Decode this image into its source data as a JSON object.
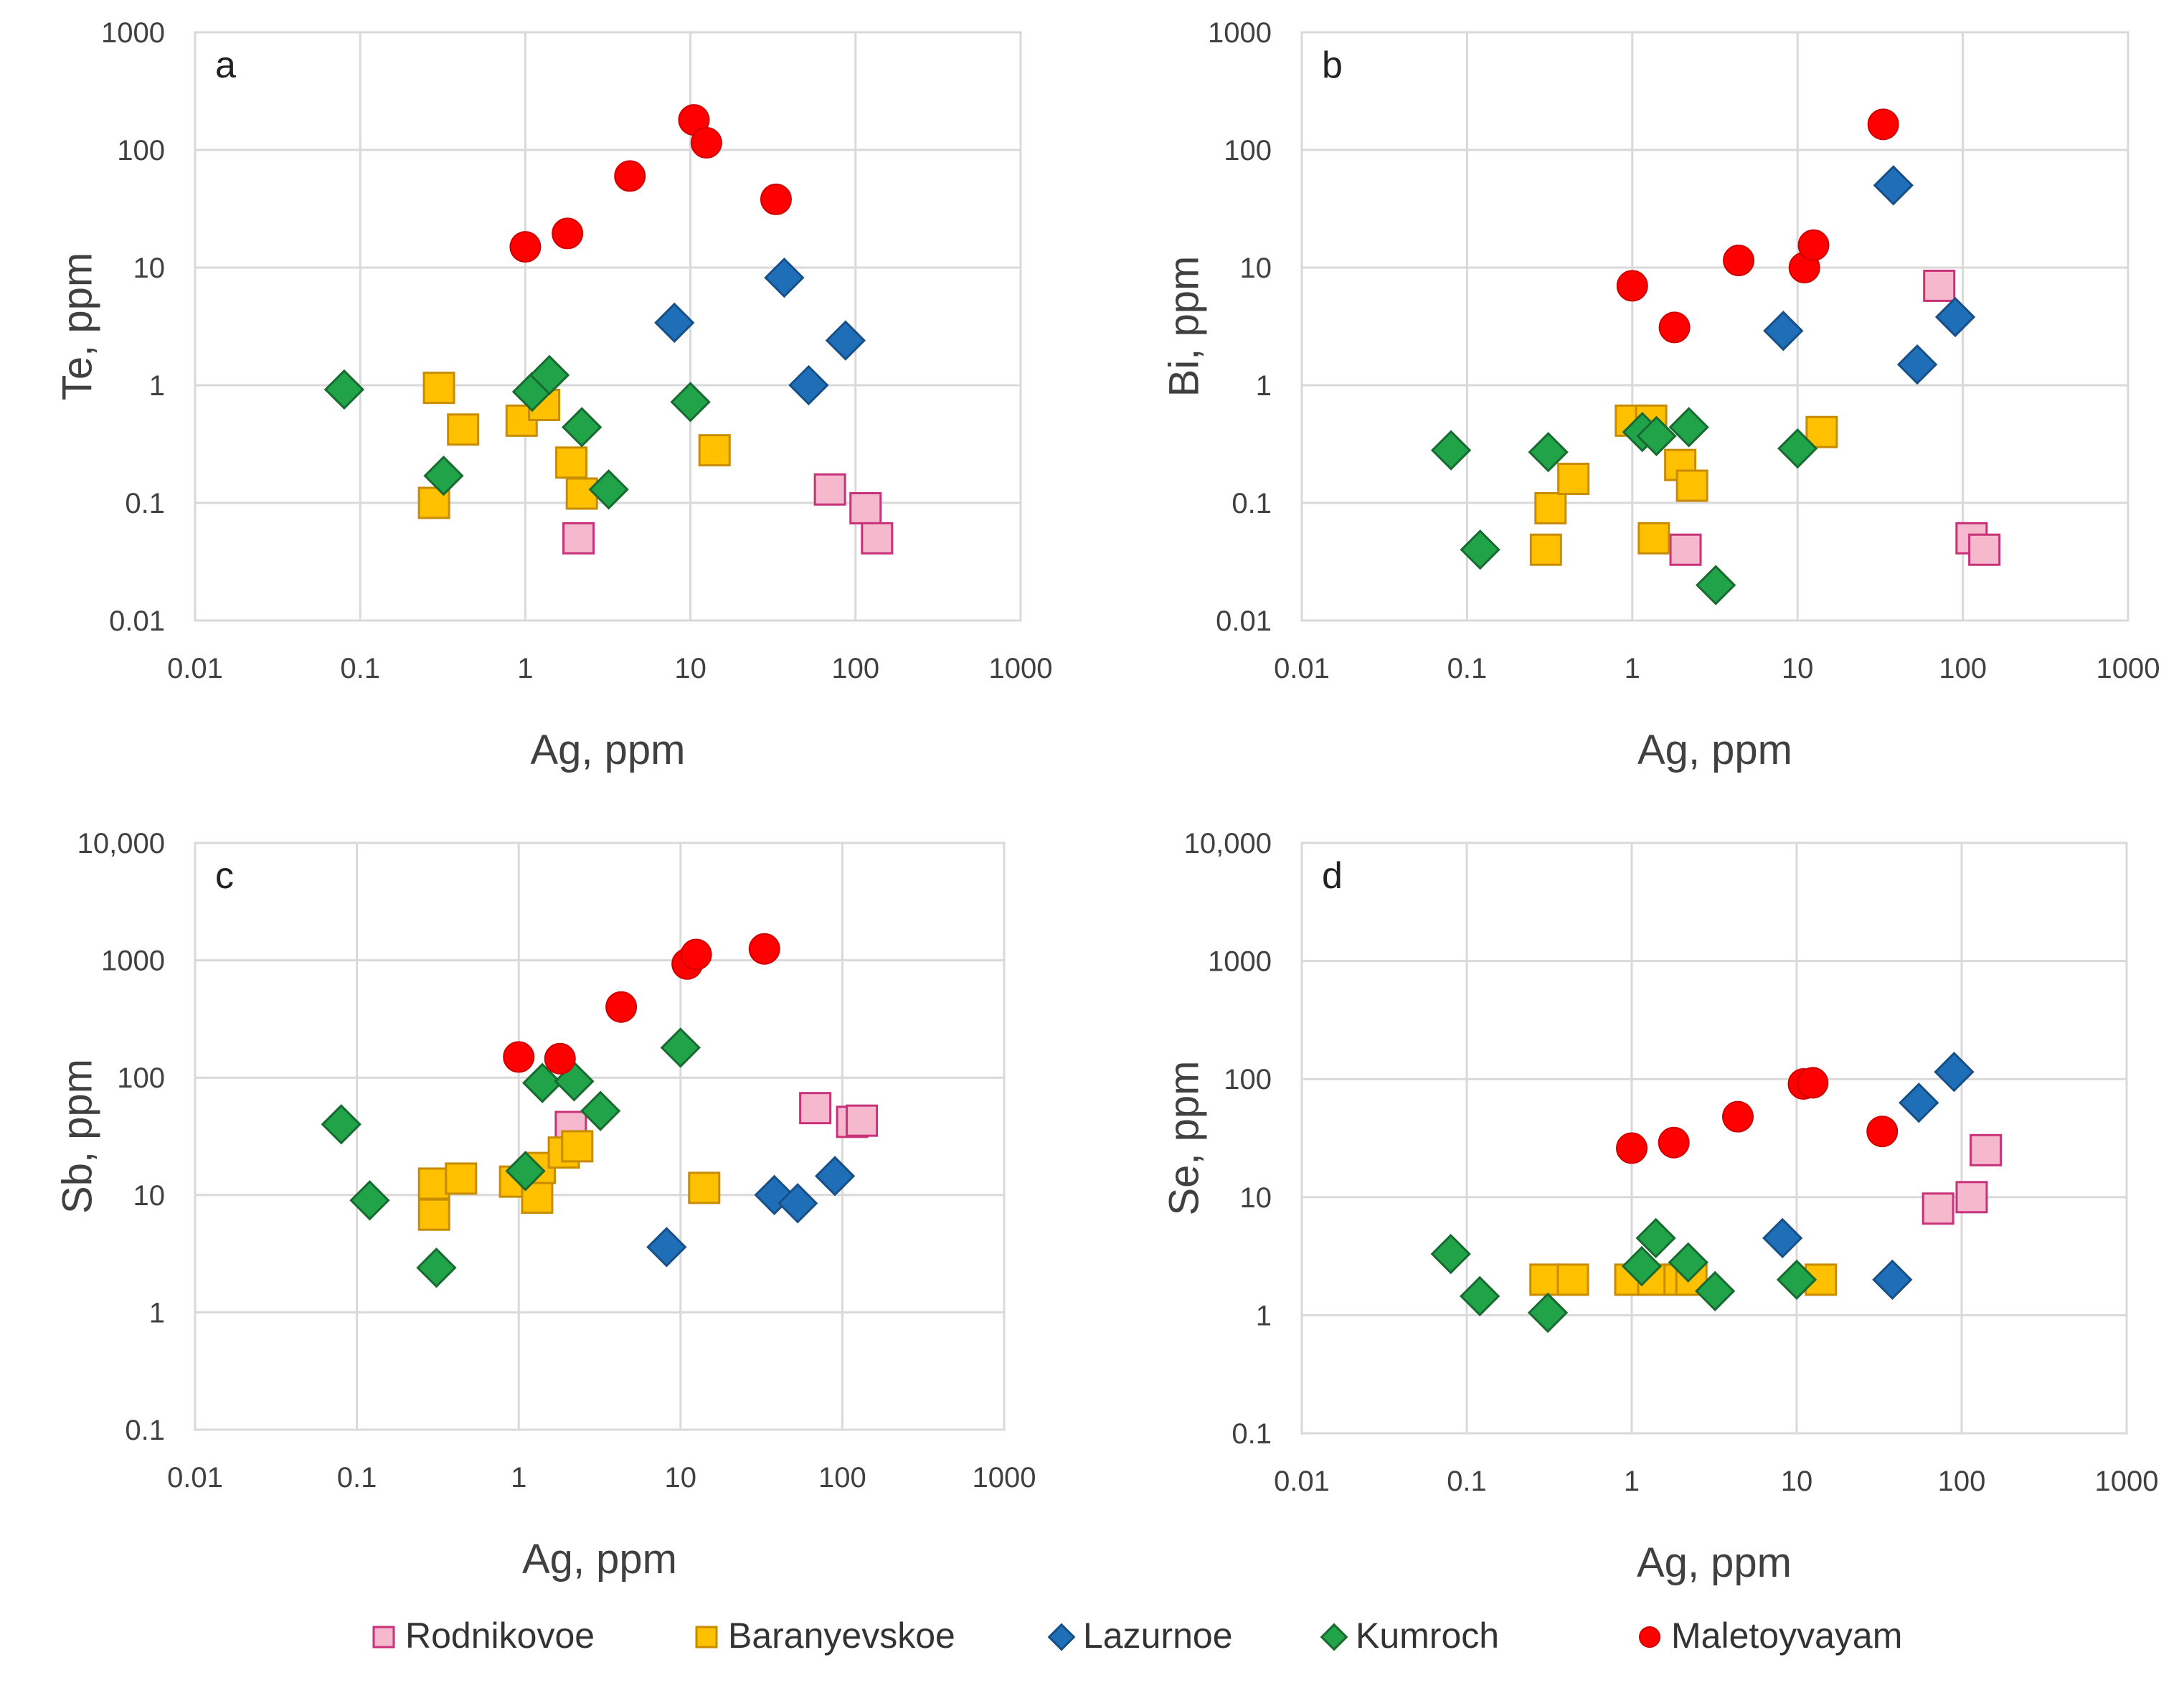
{
  "colors": {
    "Rodnikovoe": {
      "fill": "#f5b8cc",
      "stroke": "#c83278"
    },
    "Baranyevskoe": {
      "fill": "#ffc000",
      "stroke": "#c88c00"
    },
    "Lazurnoe": {
      "fill": "#1f6fb8",
      "stroke": "#174f86"
    },
    "Kumroch": {
      "fill": "#21a349",
      "stroke": "#186b30"
    },
    "Maletoyvayam": {
      "fill": "#ff0000",
      "stroke": "#d00000"
    }
  },
  "legend": [
    {
      "name": "Rodnikovoe",
      "marker": "square-pink"
    },
    {
      "name": "Baranyevskoe",
      "marker": "square-orange"
    },
    {
      "name": "Lazurnoe",
      "marker": "diamond-blue"
    },
    {
      "name": "Kumroch",
      "marker": "diamond-green"
    },
    {
      "name": "Maletoyvayam",
      "marker": "circle-red"
    }
  ],
  "chart_data": [
    {
      "panel": "a",
      "type": "scatter",
      "xlabel": "Ag, ppm",
      "ylabel": "Te, ppm",
      "xscale": "log",
      "yscale": "log",
      "xlim": [
        0.01,
        1000
      ],
      "ylim": [
        0.01,
        1000
      ],
      "xticks": [
        "0.01",
        "0.1",
        "1",
        "10",
        "100",
        "1000"
      ],
      "yticks": [
        "0.01",
        "0.1",
        "1",
        "10",
        "100",
        "1000"
      ],
      "series": [
        {
          "name": "Rodnikovoe",
          "marker": "square",
          "points": [
            [
              2.1,
              0.05
            ],
            [
              70,
              0.13
            ],
            [
              115,
              0.09
            ],
            [
              135,
              0.05
            ]
          ]
        },
        {
          "name": "Baranyevskoe",
          "marker": "square",
          "points": [
            [
              0.3,
              0.95
            ],
            [
              0.28,
              0.1
            ],
            [
              0.42,
              0.42
            ],
            [
              0.95,
              0.5
            ],
            [
              1.3,
              0.68
            ],
            [
              1.9,
              0.22
            ],
            [
              2.2,
              0.12
            ],
            [
              14,
              0.28
            ]
          ]
        },
        {
          "name": "Lazurnoe",
          "marker": "diamond",
          "points": [
            [
              8,
              3.4
            ],
            [
              37,
              8.2
            ],
            [
              52,
              1.0
            ],
            [
              87,
              2.4
            ]
          ]
        },
        {
          "name": "Kumroch",
          "marker": "diamond",
          "points": [
            [
              0.08,
              0.92
            ],
            [
              0.32,
              0.17
            ],
            [
              1.1,
              0.88
            ],
            [
              1.4,
              1.22
            ],
            [
              2.2,
              0.44
            ],
            [
              3.2,
              0.13
            ],
            [
              10,
              0.72
            ]
          ]
        },
        {
          "name": "Maletoyvayam",
          "marker": "circle",
          "points": [
            [
              1.0,
              15
            ],
            [
              1.8,
              19.5
            ],
            [
              4.3,
              60
            ],
            [
              10.5,
              180
            ],
            [
              12.5,
              115
            ],
            [
              33,
              38
            ]
          ]
        }
      ]
    },
    {
      "panel": "b",
      "type": "scatter",
      "xlabel": "Ag, ppm",
      "ylabel": "Bi, ppm",
      "xscale": "log",
      "yscale": "log",
      "xlim": [
        0.01,
        1000
      ],
      "ylim": [
        0.01,
        1000
      ],
      "xticks": [
        "0.01",
        "0.1",
        "1",
        "10",
        "100",
        "1000"
      ],
      "yticks": [
        "0.01",
        "0.1",
        "1",
        "10",
        "100",
        "1000"
      ],
      "series": [
        {
          "name": "Rodnikovoe",
          "marker": "square",
          "points": [
            [
              2.1,
              0.04
            ],
            [
              72,
              7
            ],
            [
              113,
              0.05
            ],
            [
              135,
              0.04
            ]
          ]
        },
        {
          "name": "Baranyevskoe",
          "marker": "square",
          "points": [
            [
              0.3,
              0.04
            ],
            [
              0.32,
              0.09
            ],
            [
              0.44,
              0.16
            ],
            [
              0.98,
              0.5
            ],
            [
              1.3,
              0.5
            ],
            [
              1.35,
              0.05
            ],
            [
              1.95,
              0.21
            ],
            [
              2.3,
              0.14
            ],
            [
              14,
              0.4
            ]
          ]
        },
        {
          "name": "Lazurnoe",
          "marker": "diamond",
          "points": [
            [
              8.2,
              2.9
            ],
            [
              38,
              50
            ],
            [
              53,
              1.5
            ],
            [
              90,
              3.8
            ]
          ]
        },
        {
          "name": "Kumroch",
          "marker": "diamond",
          "points": [
            [
              0.08,
              0.28
            ],
            [
              0.12,
              0.04
            ],
            [
              0.31,
              0.27
            ],
            [
              1.15,
              0.4
            ],
            [
              1.4,
              0.37
            ],
            [
              2.2,
              0.44
            ],
            [
              3.2,
              0.02
            ],
            [
              10,
              0.29
            ]
          ]
        },
        {
          "name": "Maletoyvayam",
          "marker": "circle",
          "points": [
            [
              1.0,
              7
            ],
            [
              1.8,
              3.1
            ],
            [
              4.4,
              11.5
            ],
            [
              11,
              10
            ],
            [
              12.5,
              15.5
            ],
            [
              33,
              165
            ]
          ]
        }
      ]
    },
    {
      "panel": "c",
      "type": "scatter",
      "xlabel": "Ag, ppm",
      "ylabel": "Sb, ppm",
      "xscale": "log",
      "yscale": "log",
      "xlim": [
        0.01,
        1000
      ],
      "ylim": [
        0.1,
        10000
      ],
      "xticks": [
        "0.01",
        "0.1",
        "1",
        "10",
        "100",
        "1000"
      ],
      "yticks": [
        "0.1",
        "1",
        "10",
        "100",
        "1000",
        "10,000"
      ],
      "series": [
        {
          "name": "Rodnikovoe",
          "marker": "square",
          "points": [
            [
              2.1,
              38
            ],
            [
              68,
              55
            ],
            [
              115,
              42
            ],
            [
              132,
              43
            ]
          ]
        },
        {
          "name": "Baranyevskoe",
          "marker": "square",
          "points": [
            [
              0.3,
              12.5
            ],
            [
              0.3,
              6.8
            ],
            [
              0.44,
              13.8
            ],
            [
              0.95,
              13
            ],
            [
              1.3,
              9.5
            ],
            [
              1.35,
              17
            ],
            [
              1.9,
              23
            ],
            [
              2.3,
              26
            ],
            [
              14,
              11.5
            ]
          ]
        },
        {
          "name": "Lazurnoe",
          "marker": "diamond",
          "points": [
            [
              8.2,
              3.6
            ],
            [
              38,
              10
            ],
            [
              53,
              8.5
            ],
            [
              90,
              14.5
            ]
          ]
        },
        {
          "name": "Kumroch",
          "marker": "diamond",
          "points": [
            [
              0.08,
              40
            ],
            [
              0.12,
              9
            ],
            [
              0.31,
              2.4
            ],
            [
              1.1,
              16
            ],
            [
              1.4,
              90
            ],
            [
              2.2,
              93
            ],
            [
              3.2,
              52
            ],
            [
              10,
              180
            ]
          ]
        },
        {
          "name": "Maletoyvayam",
          "marker": "circle",
          "points": [
            [
              1.0,
              150
            ],
            [
              1.8,
              145
            ],
            [
              4.3,
              400
            ],
            [
              11,
              930
            ],
            [
              12.5,
              1120
            ],
            [
              33,
              1250
            ]
          ]
        }
      ]
    },
    {
      "panel": "d",
      "type": "scatter",
      "xlabel": "Ag, ppm",
      "ylabel": "Se, ppm",
      "xscale": "log",
      "yscale": "log",
      "xlim": [
        0.01,
        1000
      ],
      "ylim": [
        0.1,
        10000
      ],
      "xticks": [
        "0.01",
        "0.1",
        "1",
        "10",
        "100",
        "1000"
      ],
      "yticks": [
        "0.1",
        "1",
        "10",
        "100",
        "1000",
        "10,000"
      ],
      "series": [
        {
          "name": "Rodnikovoe",
          "marker": "square",
          "points": [
            [
              72,
              8
            ],
            [
              115,
              10
            ],
            [
              140,
              25
            ]
          ]
        },
        {
          "name": "Baranyevskoe",
          "marker": "square",
          "points": [
            [
              0.3,
              2
            ],
            [
              0.44,
              2
            ],
            [
              0.98,
              2
            ],
            [
              1.35,
              2
            ],
            [
              1.95,
              2
            ],
            [
              2.3,
              2
            ],
            [
              14,
              2
            ]
          ]
        },
        {
          "name": "Lazurnoe",
          "marker": "diamond",
          "points": [
            [
              8.2,
              4.5
            ],
            [
              38,
              2
            ],
            [
              55,
              63
            ],
            [
              90,
              115
            ]
          ]
        },
        {
          "name": "Kumroch",
          "marker": "diamond",
          "points": [
            [
              0.08,
              3.3
            ],
            [
              0.12,
              1.45
            ],
            [
              0.31,
              1.05
            ],
            [
              1.15,
              2.6
            ],
            [
              1.4,
              4.5
            ],
            [
              2.2,
              2.8
            ],
            [
              3.2,
              1.6
            ],
            [
              10,
              2
            ]
          ]
        },
        {
          "name": "Maletoyvayam",
          "marker": "circle",
          "points": [
            [
              1.0,
              26
            ],
            [
              1.8,
              29
            ],
            [
              4.4,
              48
            ],
            [
              11,
              91
            ],
            [
              12.5,
              93
            ],
            [
              33,
              36
            ]
          ]
        }
      ]
    }
  ]
}
